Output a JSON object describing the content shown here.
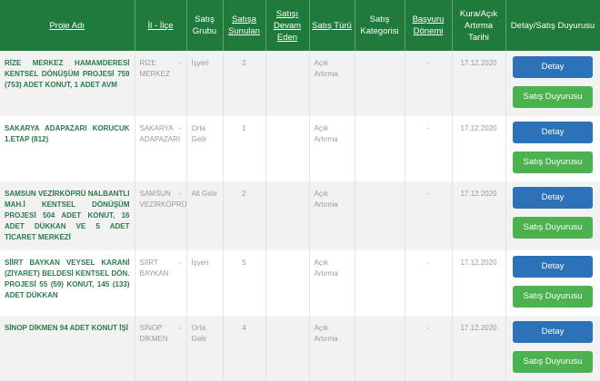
{
  "headers": [
    {
      "label": "Proje Adı",
      "sortable": true
    },
    {
      "label": "İl - İlçe",
      "sortable": true
    },
    {
      "label": "Satış Grubu",
      "sortable": false
    },
    {
      "label": "Satışa Sunulan",
      "sortable": true
    },
    {
      "label": "Satışı Devam Eden",
      "sortable": true
    },
    {
      "label": "Satış Türü",
      "sortable": true
    },
    {
      "label": "Satış Kategorisi",
      "sortable": false
    },
    {
      "label": "Başvuru Dönemi",
      "sortable": true
    },
    {
      "label": "Kura/Açık Artırma Tarihi",
      "sortable": false
    },
    {
      "label": "Detay/Satış Duyurusu",
      "sortable": false
    }
  ],
  "buttons": {
    "detail": "Detay",
    "announcement": "Satış Duyurusu"
  },
  "colors": {
    "header": "#1f7a3c",
    "detail_button": "#2c72b8",
    "announcement_button": "#4cb14f",
    "project_text": "#2b7a4b"
  },
  "rows": [
    {
      "name": "RİZE MERKEZ HAMAMDERESİ KENTSEL DÖNÜŞÜM PROJESİ 759 (753) ADET KONUT, 1 ADET AVM",
      "il": "RİZE",
      "ilce": "MERKEZ",
      "sep": "-",
      "group": "İşyeri",
      "offered": "2",
      "ongoing": "",
      "type": "Açık Artırma",
      "category": "",
      "period": "-",
      "date": "17.12.2020"
    },
    {
      "name": "SAKARYA ADAPAZARI KORUCUK 1.ETAP (812)",
      "il": "SAKARYA",
      "ilce": "ADAPAZARI",
      "sep": "-",
      "group": "Orta Gelir",
      "offered": "1",
      "ongoing": "",
      "type": "Açık Artırma",
      "category": "",
      "period": "-",
      "date": "17.12.2020"
    },
    {
      "name": "SAMSUN VEZİRKÖPRÜ NALBANTLI MAH.İ KENTSEL DÖNÜŞÜM PROJESİ 504 ADET KONUT, 16 ADET DÜKKAN VE 5 ADET TİCARET MERKEZİ",
      "il": "SAMSUN",
      "ilce": "VEZİRKÖPRÜ",
      "sep": "-",
      "group": "Alt Gelir",
      "offered": "2",
      "ongoing": "",
      "type": "Açık Artırma",
      "category": "",
      "period": "-",
      "date": "17.12.2020"
    },
    {
      "name": "SİİRT BAYKAN VEYSEL KARANİ (ZİYARET) BELDESİ KENTSEL DÖN. PROJESİ 55 (59) KONUT, 145 (133) ADET DÜKKAN",
      "il": "SİİRT",
      "ilce": "BAYKAN",
      "sep": "-",
      "group": "İşyeri",
      "offered": "5",
      "ongoing": "",
      "type": "Açık Artırma",
      "category": "",
      "period": "-",
      "date": "17.12.2020"
    },
    {
      "name": "SİNOP DİKMEN 94 ADET KONUT İŞİ",
      "il": "SİNOP",
      "ilce": "DİKMEN",
      "sep": "-",
      "group": "Orta Gelir",
      "offered": "4",
      "ongoing": "",
      "type": "Açık Artırma",
      "category": "",
      "period": "-",
      "date": "17.12.2020"
    }
  ]
}
